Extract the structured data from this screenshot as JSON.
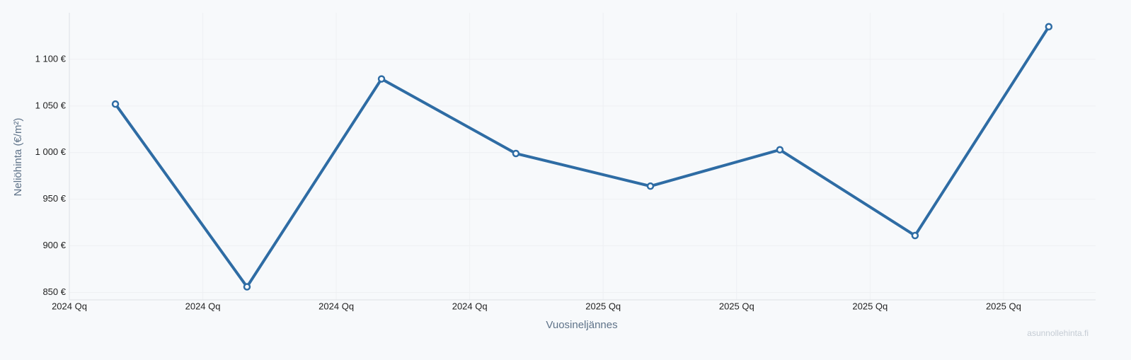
{
  "chart_data": {
    "type": "line",
    "y_label": "Neliöhinta (€/m²)",
    "x_label": "Vuosineljännes",
    "watermark": "asunnollehinta.fi",
    "x": [
      0.345,
      1.331,
      2.339,
      3.346,
      4.354,
      5.324,
      6.337,
      7.339
    ],
    "series": [
      {
        "color": "#2e6ca4",
        "values": [
          1052,
          856,
          1079,
          999,
          964,
          1003,
          911,
          1135
        ]
      }
    ],
    "xlim": [
      0,
      7.69
    ],
    "xticks": [
      {
        "value": 0,
        "label": "2024 Qq"
      },
      {
        "value": 1,
        "label": "2024 Qq"
      },
      {
        "value": 2,
        "label": "2024 Qq"
      },
      {
        "value": 3,
        "label": "2024 Qq"
      },
      {
        "value": 4,
        "label": "2025 Qq"
      },
      {
        "value": 5,
        "label": "2025 Qq"
      },
      {
        "value": 6,
        "label": "2025 Qq"
      },
      {
        "value": 7,
        "label": "2025 Qq"
      }
    ],
    "ylim": [
      842,
      1150
    ],
    "yticks": [
      {
        "value": 850,
        "label": "850 €"
      },
      {
        "value": 900,
        "label": "900 €"
      },
      {
        "value": 950,
        "label": "950 €"
      },
      {
        "value": 1000,
        "label": "1 000 €"
      },
      {
        "value": 1050,
        "label": "1 050 €"
      },
      {
        "value": 1100,
        "label": "1 100 €"
      }
    ],
    "grid": true
  }
}
